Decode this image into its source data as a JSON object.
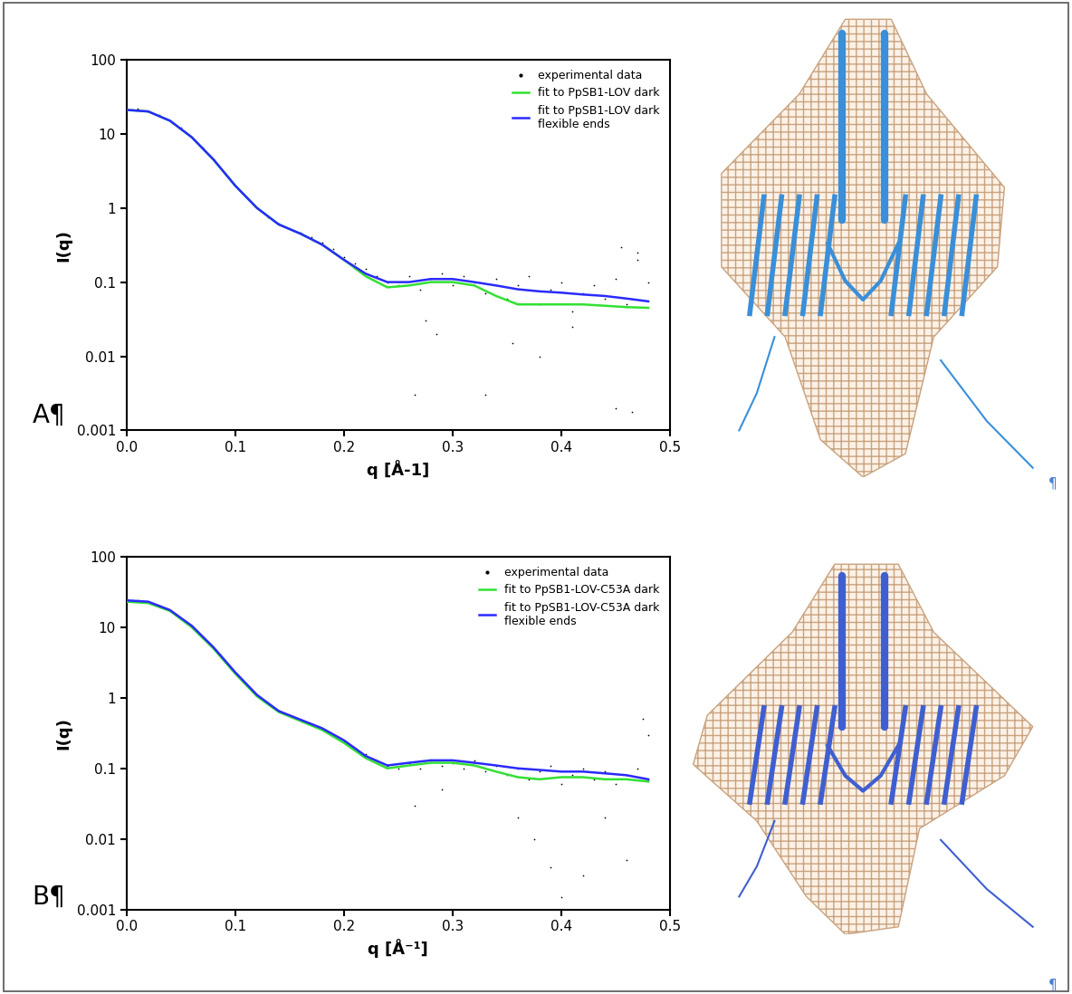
{
  "chart_data": [
    {
      "type": "scatter",
      "panel_label": "A¶",
      "x_label": "q [Å-1]",
      "y_label": "I(q)",
      "log": "y",
      "legend": "upper right",
      "xlim": [
        0.0,
        0.5
      ],
      "xticks": [
        0.0,
        0.1,
        0.2,
        0.3,
        0.4,
        0.5
      ],
      "ylim": [
        0.001,
        100
      ],
      "yticks": [
        0.001,
        0.01,
        0.1,
        1,
        10,
        100
      ],
      "series": [
        {
          "name": "experimental data",
          "type": "scatter",
          "marker": "dot",
          "color": "#000000",
          "x": [
            0.005,
            0.01,
            0.02,
            0.03,
            0.04,
            0.05,
            0.06,
            0.07,
            0.08,
            0.09,
            0.1,
            0.11,
            0.12,
            0.13,
            0.14,
            0.15,
            0.16,
            0.17,
            0.18,
            0.19,
            0.2,
            0.21,
            0.22,
            0.23,
            0.24,
            0.25,
            0.26,
            0.27,
            0.28,
            0.29,
            0.3,
            0.31,
            0.32,
            0.33,
            0.34,
            0.35,
            0.36,
            0.37,
            0.38,
            0.39,
            0.4,
            0.41,
            0.42,
            0.43,
            0.44,
            0.45,
            0.46,
            0.47,
            0.48,
            0.265,
            0.275,
            0.285,
            0.33,
            0.355,
            0.38,
            0.41,
            0.45,
            0.455,
            0.465,
            0.47
          ],
          "values": [
            21,
            22,
            20,
            18,
            15,
            12,
            9,
            6.5,
            4.5,
            3,
            2,
            1.4,
            1.0,
            0.75,
            0.62,
            0.52,
            0.46,
            0.4,
            0.34,
            0.28,
            0.22,
            0.18,
            0.15,
            0.12,
            0.1,
            0.09,
            0.12,
            0.08,
            0.11,
            0.13,
            0.09,
            0.12,
            0.1,
            0.07,
            0.11,
            0.06,
            0.09,
            0.12,
            0.05,
            0.08,
            0.1,
            0.04,
            0.07,
            0.09,
            0.06,
            0.11,
            0.05,
            0.2,
            0.1,
            0.003,
            0.03,
            0.02,
            0.003,
            0.015,
            0.01,
            0.025,
            0.002,
            0.3,
            0.0018,
            0.25
          ]
        },
        {
          "name": "fit to PpSB1-LOV dark",
          "type": "line",
          "line_style": "solid",
          "color": "#33e033",
          "x": [
            0.0,
            0.02,
            0.04,
            0.06,
            0.08,
            0.1,
            0.12,
            0.14,
            0.16,
            0.18,
            0.2,
            0.22,
            0.24,
            0.26,
            0.28,
            0.3,
            0.32,
            0.34,
            0.36,
            0.38,
            0.4,
            0.42,
            0.44,
            0.46,
            0.48
          ],
          "values": [
            21,
            20,
            15,
            9,
            4.5,
            2,
            1.0,
            0.6,
            0.45,
            0.32,
            0.2,
            0.12,
            0.085,
            0.09,
            0.1,
            0.1,
            0.09,
            0.065,
            0.05,
            0.05,
            0.05,
            0.05,
            0.048,
            0.046,
            0.045
          ]
        },
        {
          "name": "fit to PpSB1-LOV dark flexible ends",
          "type": "line",
          "line_style": "solid",
          "color": "#2a2aff",
          "x": [
            0.0,
            0.02,
            0.04,
            0.06,
            0.08,
            0.1,
            0.12,
            0.14,
            0.16,
            0.18,
            0.2,
            0.22,
            0.24,
            0.26,
            0.28,
            0.3,
            0.32,
            0.34,
            0.36,
            0.38,
            0.4,
            0.42,
            0.44,
            0.46,
            0.48
          ],
          "values": [
            21,
            20,
            15,
            9,
            4.5,
            2,
            1.0,
            0.6,
            0.45,
            0.32,
            0.2,
            0.13,
            0.1,
            0.1,
            0.11,
            0.11,
            0.1,
            0.09,
            0.08,
            0.075,
            0.072,
            0.068,
            0.065,
            0.06,
            0.055
          ]
        }
      ]
    },
    {
      "type": "scatter",
      "panel_label": "B¶",
      "x_label": "q [Å⁻¹]",
      "y_label": "I(q)",
      "log": "y",
      "legend": "upper right",
      "xlim": [
        0.0,
        0.5
      ],
      "xticks": [
        0.0,
        0.1,
        0.2,
        0.3,
        0.4,
        0.5
      ],
      "ylim": [
        0.001,
        100
      ],
      "yticks": [
        0.001,
        0.01,
        0.1,
        1,
        10,
        100
      ],
      "series": [
        {
          "name": "experimental data",
          "type": "scatter",
          "marker": "dot",
          "color": "#000000",
          "x": [
            0.005,
            0.01,
            0.02,
            0.03,
            0.04,
            0.05,
            0.06,
            0.07,
            0.08,
            0.09,
            0.1,
            0.11,
            0.12,
            0.13,
            0.14,
            0.15,
            0.16,
            0.17,
            0.18,
            0.19,
            0.2,
            0.21,
            0.22,
            0.23,
            0.24,
            0.25,
            0.26,
            0.27,
            0.28,
            0.29,
            0.3,
            0.31,
            0.32,
            0.33,
            0.34,
            0.35,
            0.36,
            0.37,
            0.38,
            0.39,
            0.4,
            0.41,
            0.42,
            0.43,
            0.44,
            0.45,
            0.46,
            0.47,
            0.48,
            0.265,
            0.29,
            0.36,
            0.375,
            0.39,
            0.4,
            0.42,
            0.44,
            0.46,
            0.475,
            0.48
          ],
          "values": [
            24,
            24,
            23,
            20,
            17,
            13,
            10,
            7,
            5,
            3.3,
            2.2,
            1.5,
            1.05,
            0.8,
            0.65,
            0.55,
            0.48,
            0.42,
            0.36,
            0.3,
            0.24,
            0.19,
            0.16,
            0.13,
            0.11,
            0.1,
            0.12,
            0.1,
            0.13,
            0.11,
            0.12,
            0.1,
            0.13,
            0.09,
            0.11,
            0.08,
            0.1,
            0.07,
            0.09,
            0.11,
            0.06,
            0.08,
            0.1,
            0.07,
            0.09,
            0.06,
            0.08,
            0.1,
            0.07,
            0.03,
            0.05,
            0.02,
            0.01,
            0.004,
            0.0015,
            0.003,
            0.02,
            0.005,
            0.5,
            0.3
          ]
        },
        {
          "name": "fit to PpSB1-LOV-C53A dark",
          "type": "line",
          "line_style": "solid",
          "color": "#33e033",
          "x": [
            0.0,
            0.02,
            0.04,
            0.06,
            0.08,
            0.1,
            0.12,
            0.14,
            0.16,
            0.18,
            0.2,
            0.22,
            0.24,
            0.26,
            0.28,
            0.3,
            0.32,
            0.34,
            0.36,
            0.38,
            0.4,
            0.42,
            0.44,
            0.46,
            0.48
          ],
          "values": [
            23,
            22,
            17,
            10,
            5,
            2.2,
            1.05,
            0.63,
            0.47,
            0.35,
            0.23,
            0.14,
            0.1,
            0.11,
            0.12,
            0.12,
            0.11,
            0.09,
            0.075,
            0.07,
            0.075,
            0.075,
            0.07,
            0.07,
            0.065
          ]
        },
        {
          "name": "fit to PpSB1-LOV-C53A dark flexible ends",
          "type": "line",
          "line_style": "solid",
          "color": "#2a2aff",
          "x": [
            0.0,
            0.02,
            0.04,
            0.06,
            0.08,
            0.1,
            0.12,
            0.14,
            0.16,
            0.18,
            0.2,
            0.22,
            0.24,
            0.26,
            0.28,
            0.3,
            0.32,
            0.34,
            0.36,
            0.38,
            0.4,
            0.42,
            0.44,
            0.46,
            0.48
          ],
          "values": [
            24,
            23,
            17.5,
            10.5,
            5.2,
            2.3,
            1.1,
            0.65,
            0.49,
            0.37,
            0.25,
            0.15,
            0.11,
            0.12,
            0.13,
            0.13,
            0.12,
            0.11,
            0.1,
            0.095,
            0.09,
            0.09,
            0.085,
            0.08,
            0.07
          ]
        }
      ]
    }
  ],
  "page_marks": [
    "¶",
    "¶"
  ]
}
